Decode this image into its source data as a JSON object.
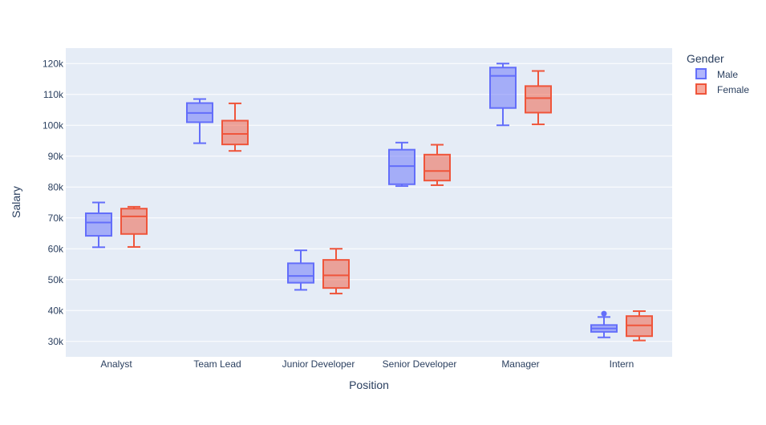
{
  "chart_data": {
    "type": "box",
    "title": "",
    "xlabel": "Position",
    "ylabel": "Salary",
    "categories": [
      "Analyst",
      "Team Lead",
      "Junior Developer",
      "Senior Developer",
      "Manager",
      "Intern"
    ],
    "ylim": [
      25000,
      125000
    ],
    "yticks": [
      30000,
      40000,
      50000,
      60000,
      70000,
      80000,
      90000,
      100000,
      110000,
      120000
    ],
    "ytick_labels": [
      "30k",
      "40k",
      "50k",
      "60k",
      "70k",
      "80k",
      "90k",
      "100k",
      "110k",
      "120k"
    ],
    "grid": true,
    "legend": {
      "title": "Gender",
      "position": "top-right"
    },
    "series": [
      {
        "name": "Male",
        "color": "#636efa",
        "boxes": [
          {
            "category": "Analyst",
            "min": 60500,
            "q1": 64200,
            "median": 68500,
            "q3": 71500,
            "max": 75000,
            "outliers": []
          },
          {
            "category": "Team Lead",
            "min": 94200,
            "q1": 101000,
            "median": 104000,
            "q3": 107200,
            "max": 108500,
            "outliers": []
          },
          {
            "category": "Junior Developer",
            "min": 46700,
            "q1": 49000,
            "median": 51200,
            "q3": 55300,
            "max": 59500,
            "outliers": []
          },
          {
            "category": "Senior Developer",
            "min": 80300,
            "q1": 80900,
            "median": 86800,
            "q3": 92100,
            "max": 94400,
            "outliers": []
          },
          {
            "category": "Manager",
            "min": 100000,
            "q1": 105600,
            "median": 116000,
            "q3": 118700,
            "max": 120000,
            "outliers": []
          },
          {
            "category": "Intern",
            "min": 31300,
            "q1": 33100,
            "median": 34200,
            "q3": 35300,
            "max": 37900,
            "outliers": [
              39000
            ]
          }
        ]
      },
      {
        "name": "Female",
        "color": "#ef553b",
        "boxes": [
          {
            "category": "Analyst",
            "min": 60600,
            "q1": 64800,
            "median": 70500,
            "q3": 73000,
            "max": 73600,
            "outliers": []
          },
          {
            "category": "Team Lead",
            "min": 91700,
            "q1": 93800,
            "median": 97200,
            "q3": 101500,
            "max": 107100,
            "outliers": []
          },
          {
            "category": "Junior Developer",
            "min": 45500,
            "q1": 47300,
            "median": 51400,
            "q3": 56400,
            "max": 60000,
            "outliers": []
          },
          {
            "category": "Senior Developer",
            "min": 80600,
            "q1": 82100,
            "median": 85200,
            "q3": 90500,
            "max": 93700,
            "outliers": []
          },
          {
            "category": "Manager",
            "min": 100300,
            "q1": 104100,
            "median": 108800,
            "q3": 112700,
            "max": 117600,
            "outliers": []
          },
          {
            "category": "Intern",
            "min": 30300,
            "q1": 31700,
            "median": 35200,
            "q3": 38200,
            "max": 39800,
            "outliers": []
          }
        ]
      }
    ]
  }
}
